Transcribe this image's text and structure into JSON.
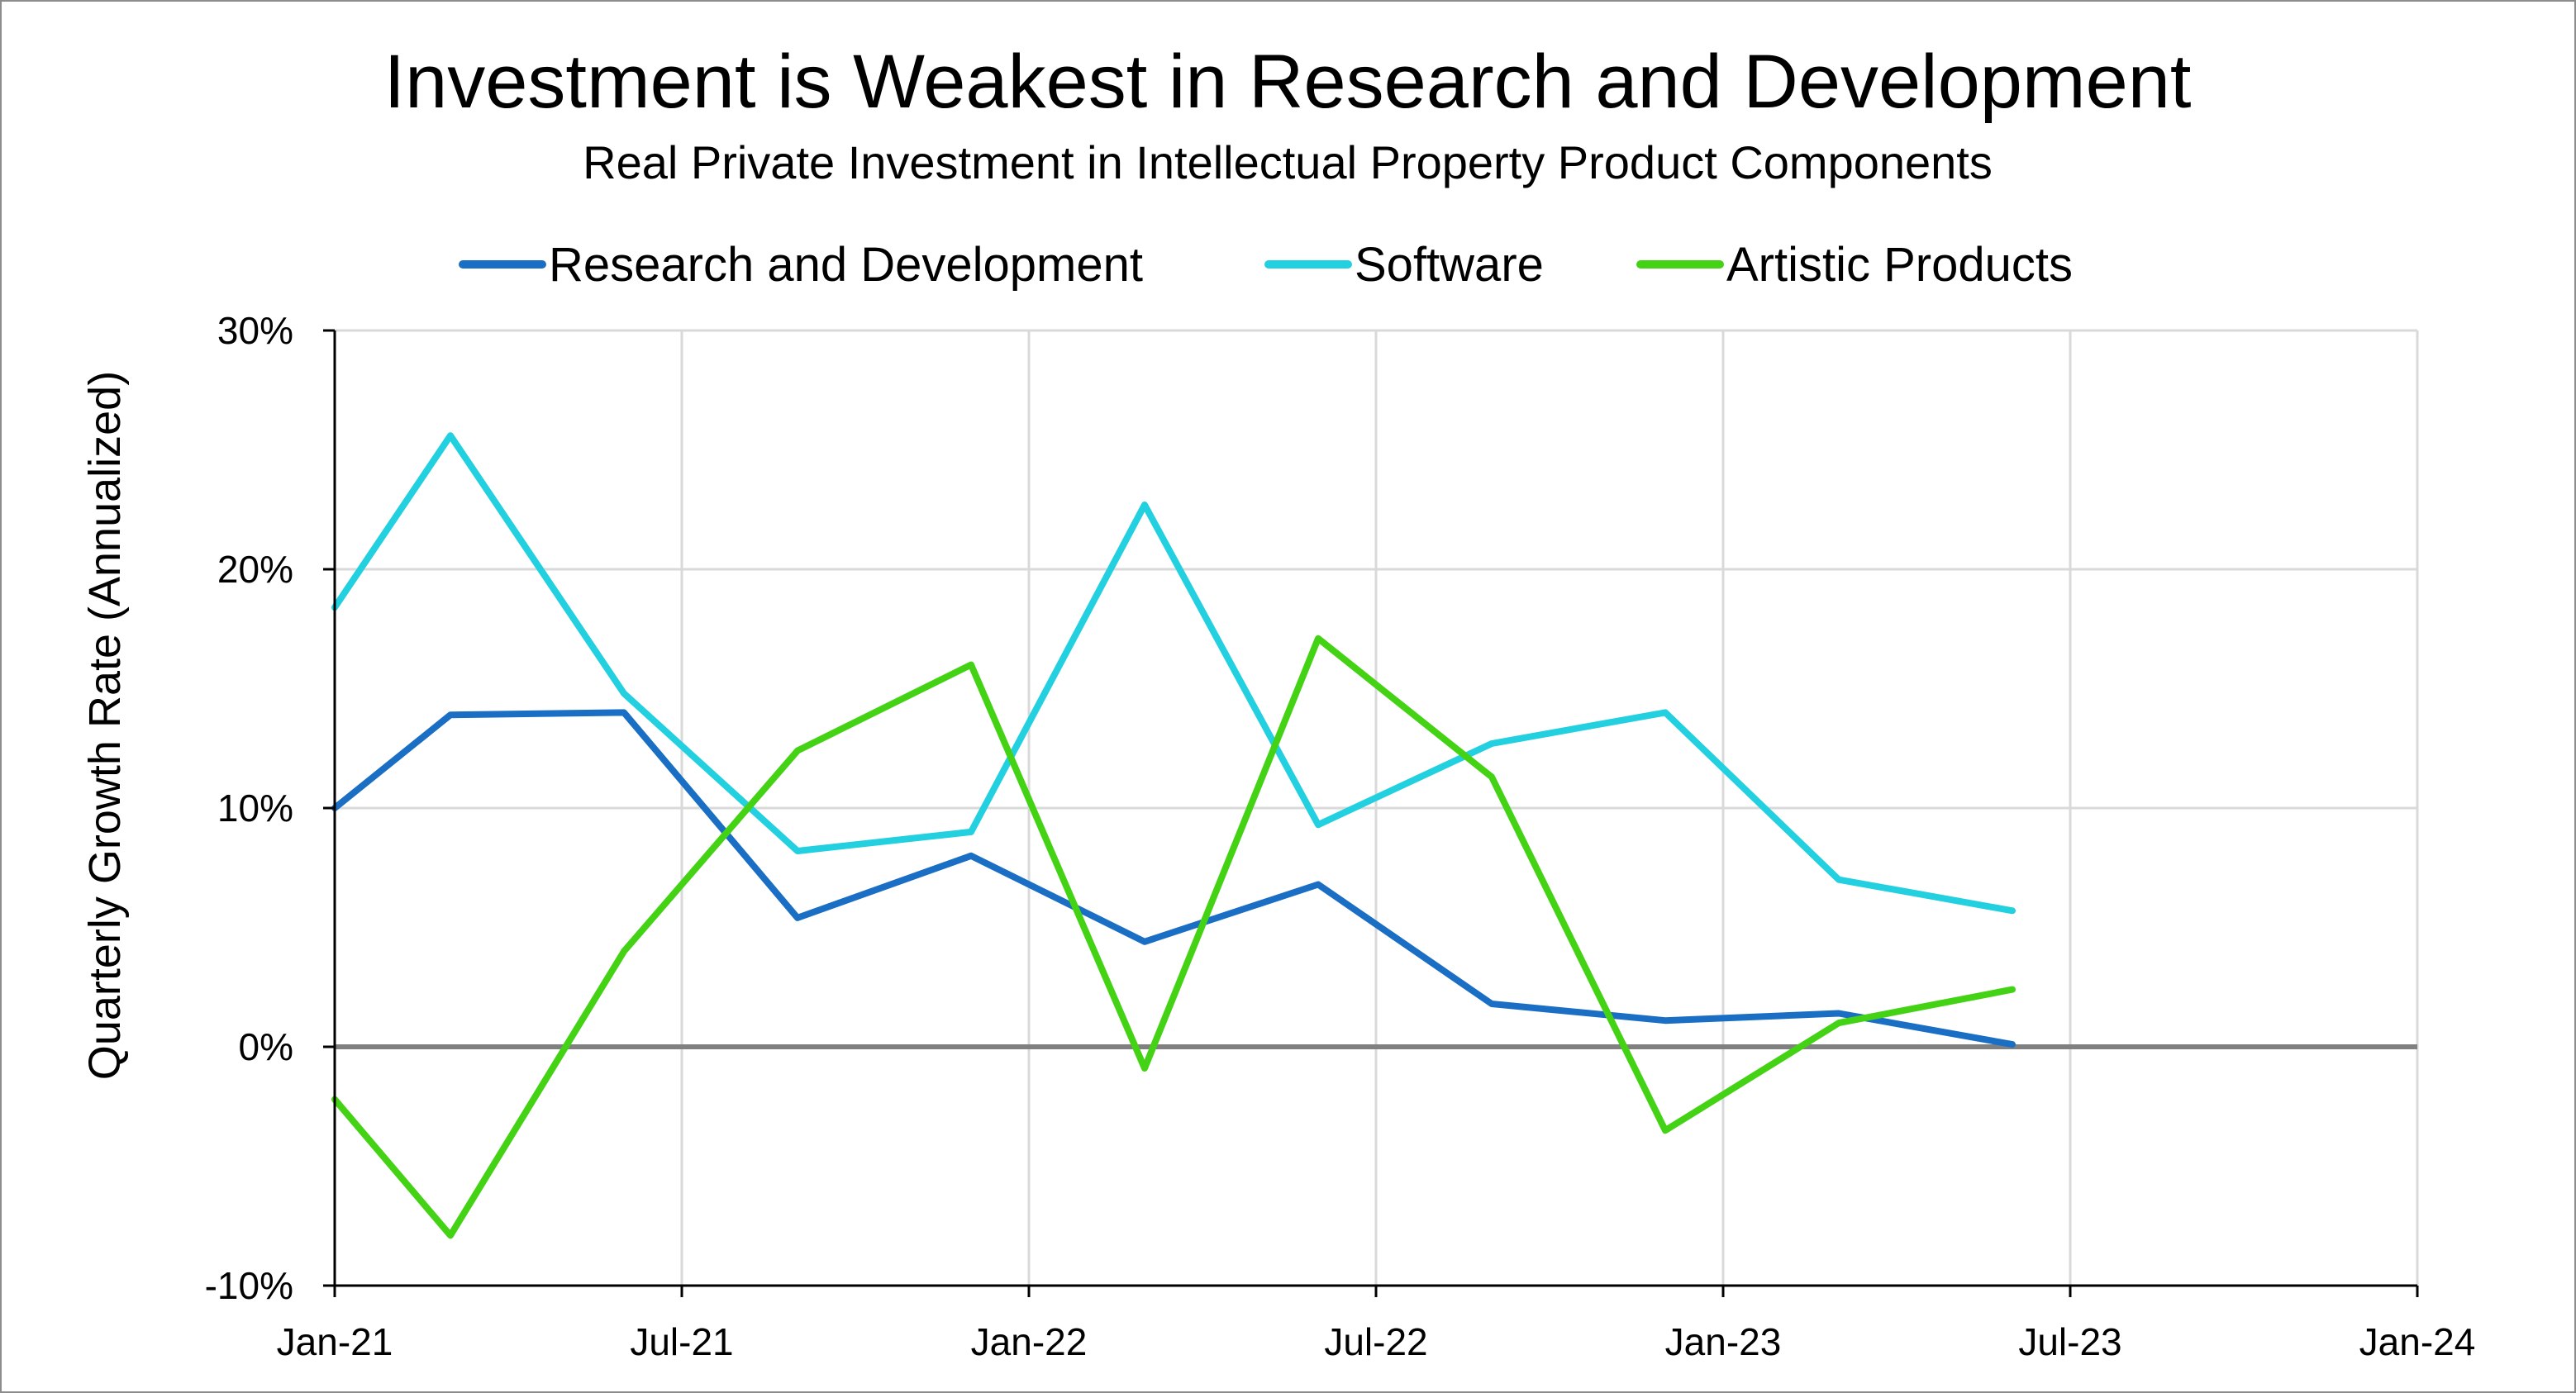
{
  "chart_data": {
    "type": "line",
    "title": "Investment is Weakest in Research and Development",
    "subtitle": "Real Private Investment in Intellectual Property Product Components",
    "xlabel": "",
    "ylabel": "Quarterly Growth Rate (Annualized)",
    "ylim": [
      -10,
      30
    ],
    "yticks": [
      -10,
      0,
      10,
      20,
      30
    ],
    "ytick_labels": [
      "-10%",
      "0%",
      "10%",
      "20%",
      "30%"
    ],
    "xlim": [
      0,
      36
    ],
    "xticks": [
      0,
      6,
      12,
      18,
      24,
      30,
      36
    ],
    "xtick_labels": [
      "Jan-21",
      "Jul-21",
      "Jan-22",
      "Jul-22",
      "Jan-23",
      "Jul-23",
      "Jan-24"
    ],
    "grid": true,
    "legend_position": "top",
    "x": [
      0,
      2,
      5,
      8,
      11,
      14,
      17,
      20,
      23,
      26,
      29
    ],
    "x_labels": [
      "Jan-21",
      "Mar-21",
      "Jun-21",
      "Sep-21",
      "Dec-21",
      "Mar-22",
      "Jun-22",
      "Sep-22",
      "Dec-22",
      "Mar-23",
      "Jun-23"
    ],
    "series": [
      {
        "name": "Research and Development",
        "color": "#1a6fc4",
        "values": [
          10.0,
          13.9,
          14.0,
          5.4,
          8.0,
          4.4,
          6.8,
          1.8,
          1.1,
          1.4,
          0.1
        ]
      },
      {
        "name": "Software",
        "color": "#22d0e0",
        "values": [
          18.4,
          25.6,
          14.8,
          8.2,
          9.0,
          22.7,
          9.3,
          12.7,
          14.0,
          7.0,
          5.7
        ]
      },
      {
        "name": "Artistic Products",
        "color": "#44d314",
        "values": [
          -2.2,
          -7.9,
          4.0,
          12.4,
          16.0,
          -0.9,
          17.1,
          11.3,
          -3.5,
          1.0,
          2.4
        ]
      }
    ],
    "zero_line_color": "#808080"
  }
}
